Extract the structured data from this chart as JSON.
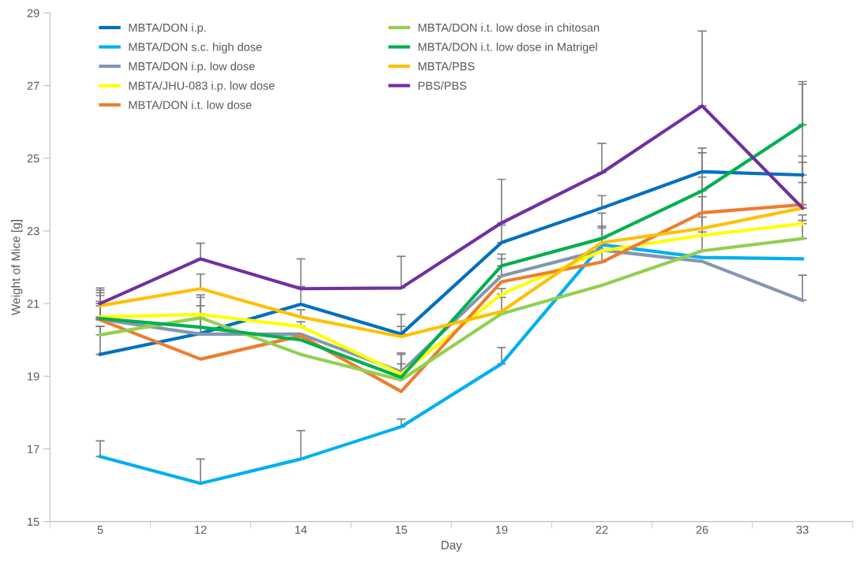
{
  "chart_data": {
    "type": "line",
    "xlabel": "Day",
    "ylabel": "Weight of Mice [g]",
    "categories": [
      "5",
      "12",
      "14",
      "15",
      "19",
      "22",
      "26",
      "33"
    ],
    "ylim": [
      15,
      29
    ],
    "yticks": [
      15,
      17,
      19,
      21,
      23,
      25,
      27,
      29
    ],
    "grid": false,
    "legend": "top left",
    "marker": "none",
    "line_style": "solid",
    "series": [
      {
        "name": "MBTA/DON i.p.",
        "color": "#0070c0",
        "values": [
          19.6,
          20.18,
          20.98,
          20.16,
          22.68,
          23.63,
          24.63,
          24.54
        ],
        "errors": [
          [
            19.6,
            20.37
          ],
          [
            20.18,
            20.72
          ],
          [
            20.98,
            21.47
          ],
          [
            20.16,
            20.37
          ],
          [
            22.68,
            23.16
          ],
          [
            23.63,
            23.97
          ],
          [
            24.63,
            25.28
          ],
          [
            24.54,
            25.06
          ]
        ]
      },
      {
        "name": "MBTA/DON s.c. high dose",
        "color": "#00b0f0",
        "values": [
          16.79,
          16.05,
          16.72,
          17.61,
          19.34,
          22.62,
          22.27,
          22.23
        ],
        "errors": [
          [
            16.79,
            17.22
          ],
          [
            16.05,
            16.72
          ],
          [
            16.72,
            17.5
          ],
          [
            17.61,
            17.82
          ],
          [
            19.34,
            19.79
          ],
          null,
          null,
          null
        ]
      },
      {
        "name": "MBTA/DON i.p. low dose",
        "color": "#8497b0",
        "values": [
          20.57,
          20.16,
          20.16,
          19.12,
          21.76,
          22.47,
          22.16,
          21.09
        ],
        "errors": [
          [
            20.57,
            21.22
          ],
          null,
          null,
          [
            19.12,
            19.64
          ],
          [
            21.76,
            22.23
          ],
          [
            22.47,
            23.13
          ],
          null,
          [
            21.09,
            21.78
          ]
        ]
      },
      {
        "name": "MBTA/JHU-083 i.p. low dose",
        "color": "#ffff00",
        "values": [
          20.63,
          20.7,
          20.37,
          19.06,
          21.26,
          22.45,
          22.88,
          23.2
        ],
        "errors": [
          [
            20.63,
            21.06
          ],
          [
            20.7,
            21.24
          ],
          [
            20.37,
            20.5
          ],
          [
            19.06,
            19.6
          ],
          [
            21.26,
            21.41
          ],
          null,
          [
            22.88,
            23.38
          ],
          [
            23.2,
            23.44
          ]
        ]
      },
      {
        "name": "MBTA/DON i.t. low dose",
        "color": "#ed7d31",
        "values": [
          20.55,
          19.47,
          20.11,
          18.58,
          21.6,
          22.14,
          23.5,
          23.72
        ],
        "errors": [
          [
            20.55,
            21.3
          ],
          null,
          null,
          null,
          null,
          [
            22.14,
            23.08
          ],
          [
            23.5,
            24.48
          ],
          [
            23.72,
            24.89
          ]
        ]
      },
      {
        "name": "MBTA/DON i.t. low dose in chitosan",
        "color": "#92d050",
        "values": [
          20.14,
          20.61,
          19.6,
          18.9,
          20.72,
          21.5,
          22.45,
          22.79
        ],
        "errors": [
          [
            20.14,
            20.37
          ],
          [
            20.61,
            21.17
          ],
          null,
          null,
          null,
          null,
          [
            22.45,
            22.97
          ],
          [
            22.79,
            23.29
          ]
        ]
      },
      {
        "name": "MBTA/DON i.t. low dose in Matrigel",
        "color": "#00b050",
        "values": [
          20.59,
          20.35,
          20.0,
          18.97,
          22.04,
          22.79,
          24.1,
          25.92
        ],
        "errors": [
          [
            20.59,
            20.59
          ],
          [
            20.35,
            20.94
          ],
          null,
          [
            18.97,
            19.34
          ],
          [
            22.04,
            22.36
          ],
          [
            22.79,
            23.49
          ],
          [
            24.1,
            25.15
          ],
          [
            25.92,
            27.11
          ]
        ]
      },
      {
        "name": "MBTA/PBS",
        "color": "#ffc000",
        "values": [
          20.94,
          21.41,
          20.63,
          20.09,
          20.78,
          22.68,
          23.07,
          23.63
        ],
        "errors": [
          [
            20.94,
            21.37
          ],
          [
            21.41,
            21.81
          ],
          [
            20.63,
            20.83
          ],
          [
            20.09,
            20.7
          ],
          [
            20.78,
            21.17
          ],
          null,
          [
            23.07,
            23.94
          ],
          [
            23.63,
            24.33
          ]
        ]
      },
      {
        "name": "PBS/PBS",
        "color": "#7030a0",
        "values": [
          21.0,
          22.23,
          21.41,
          21.43,
          23.22,
          24.6,
          26.44,
          23.63
        ],
        "errors": [
          [
            21.0,
            21.43
          ],
          [
            22.23,
            22.66
          ],
          [
            21.41,
            22.23
          ],
          [
            21.43,
            22.3
          ],
          [
            23.22,
            24.42
          ],
          [
            24.6,
            25.41
          ],
          [
            26.44,
            28.5
          ],
          [
            23.63,
            27.04
          ]
        ]
      }
    ]
  }
}
